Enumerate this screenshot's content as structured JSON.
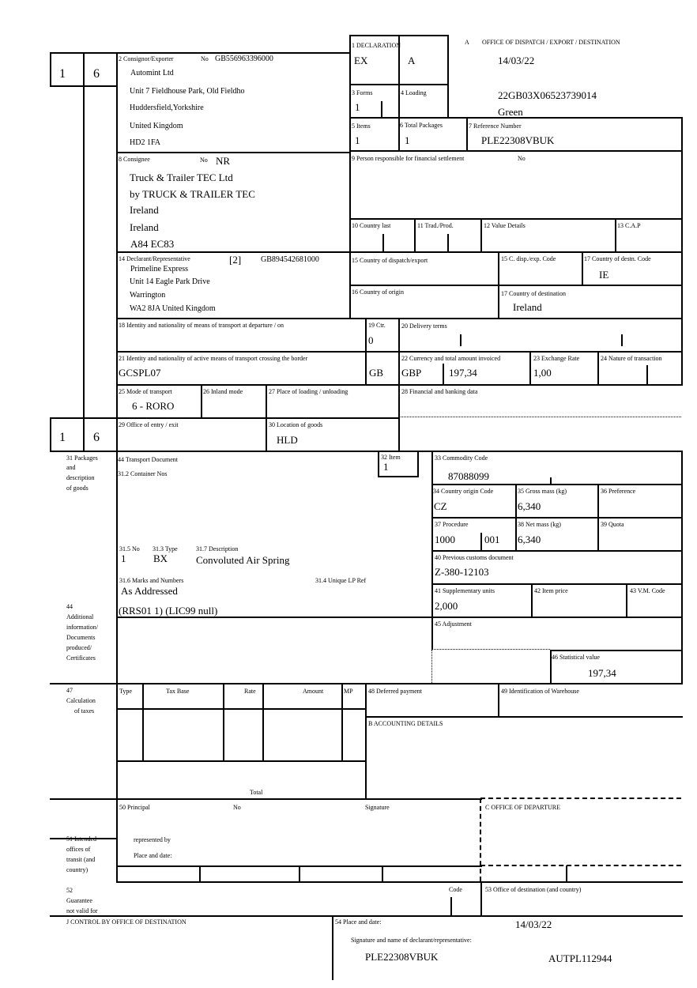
{
  "header": {
    "a_label": "A",
    "office_label": "OFFICE OF DISPATCH / EXPORT / DESTINATION",
    "date": "14/03/22",
    "mrn": "22GB03X06523739014",
    "route": "Green"
  },
  "side": {
    "form_top": "1",
    "form_top_of": "6",
    "form_bottom": "1",
    "form_bottom_of": "6"
  },
  "box1": {
    "label": "1 DECLARATION",
    "type": "EX",
    "subtype": "A"
  },
  "box2": {
    "label": "2 Consignor/Exporter",
    "no_label": "No",
    "no": "GB556963396000",
    "lines": [
      "Automint Ltd",
      "Unit 7 Fieldhouse Park, Old Fieldho",
      "Huddersfield,Yorkshire",
      "United Kingdom",
      "HD2 1FA"
    ]
  },
  "box3": {
    "label": "3 Forms",
    "value": "1"
  },
  "box4": {
    "label": "4 Loading"
  },
  "box5": {
    "label": "5 Items",
    "value": "1"
  },
  "box6": {
    "label": "6 Total Packages",
    "value": "1"
  },
  "box7": {
    "label": "7 Reference Number",
    "value": "PLE22308VBUK"
  },
  "box8": {
    "label": "8 Consignee",
    "no_label": "No",
    "no": "NR",
    "lines": [
      "Truck & Trailer TEC Ltd",
      "by TRUCK & TRAILER TEC",
      "Ireland",
      "Ireland",
      "A84 EC83"
    ]
  },
  "box9": {
    "label": "9 Person responsible for financial settlement",
    "no_label": "No"
  },
  "box10": {
    "label": "10 Country last"
  },
  "box11": {
    "label": "11 Trad./Prod."
  },
  "box12": {
    "label": "12 Value Details"
  },
  "box13": {
    "label": "13 C.A.P"
  },
  "box14": {
    "label": "14 Declarant/Representative",
    "rep_code": "[2]",
    "no": "GB894542681000",
    "lines": [
      "Primeline Express",
      "Unit 14 Eagle Park Drive",
      "Warrington",
      "WA2 8JA United Kingdom"
    ]
  },
  "box15": {
    "label": "15 Country of dispatch/export"
  },
  "box15a": {
    "label": "15 C. disp./exp. Code"
  },
  "box17a": {
    "label": "17 Country of destn. Code",
    "value": "IE"
  },
  "box16": {
    "label": "16 Country of origin"
  },
  "box17": {
    "label": "17 Country of destination",
    "value": "Ireland"
  },
  "box18": {
    "label": "18 Identity and nationality of means of transport at departure / on"
  },
  "box19": {
    "label": "19 Ctr.",
    "value": "0"
  },
  "box20": {
    "label": "20 Delivery terms"
  },
  "box21": {
    "label": "21 Identity and nationality of active means of transport crossing the border",
    "value": "GCSPL07",
    "nationality": "GB"
  },
  "box22": {
    "label": "22 Currency and total amount invoiced",
    "currency": "GBP",
    "amount": "197,34"
  },
  "box23": {
    "label": "23 Exchange Rate",
    "value": "1,00"
  },
  "box24": {
    "label": "24 Nature of transaction"
  },
  "box25": {
    "label": "25 Mode of transport",
    "value": "6 - RORO"
  },
  "box26": {
    "label": "26 Inland mode"
  },
  "box27": {
    "label": "27 Place of loading / unloading"
  },
  "box28": {
    "label": "28 Financial and banking data"
  },
  "box29": {
    "label": "29 Office of entry / exit"
  },
  "box30": {
    "label": "30 Location of goods",
    "value": "HLD"
  },
  "box31": {
    "label_lines": [
      "31 Packages",
      "and",
      "description",
      "of goods"
    ],
    "transport_doc_label": "44 Transport Document",
    "container_label": "31.2 Container Nos",
    "no_label": "31.5 No",
    "type_label": "31.3 Type",
    "desc_label": "31.7 Description",
    "no": "1",
    "type": "BX",
    "description": "Convoluted Air Spring",
    "marks_label": "31.6 Marks and Numbers",
    "marks": "As Addressed",
    "ulp_label": "31.4 Unique LP Ref"
  },
  "box32": {
    "label": "32 Item",
    "value": "1"
  },
  "box33": {
    "label": "33 Commodity Code",
    "value": "87088099"
  },
  "box34": {
    "label": "34 Country origin Code",
    "value": "CZ"
  },
  "box35": {
    "label": "35 Gross mass (kg)",
    "value": "6,340"
  },
  "box36": {
    "label": "36 Preference"
  },
  "box37": {
    "label": "37 Procedure",
    "value": "1000",
    "value2": "001"
  },
  "box38": {
    "label": "38 Net mass (kg)",
    "value": "6,340"
  },
  "box39": {
    "label": "39 Quota"
  },
  "box40": {
    "label": "40 Previous customs document",
    "value": "Z-380-12103"
  },
  "box41": {
    "label": "41 Supplementary units",
    "value": "2,000"
  },
  "box42": {
    "label": "42 Item price"
  },
  "box43": {
    "label": "43 V.M. Code"
  },
  "box44": {
    "label_lines": [
      "44",
      "Additional",
      "information/",
      "Documents",
      "produced/",
      "Certificates"
    ],
    "value": "(RRS01 1) (LIC99 null)"
  },
  "box45": {
    "label": "45 Adjustment"
  },
  "box46": {
    "label": "46 Statistical value",
    "value": "197,34"
  },
  "box47": {
    "label_lines": [
      "47",
      "Calculation",
      "of taxes"
    ],
    "columns": [
      "Type",
      "Tax Base",
      "Rate",
      "Amount",
      "MP"
    ],
    "total_label": "Total"
  },
  "box48": {
    "label": "48 Deferred payment"
  },
  "box49": {
    "label": "49 Identification of Warehouse"
  },
  "boxB": {
    "label": "B ACCOUNTING DETAILS"
  },
  "box50": {
    "label": "50 Principal",
    "no_label": "No",
    "signature_label": "Signature",
    "represented_label": "represented by",
    "place_label": "Place and date:"
  },
  "boxC": {
    "label": "C OFFICE OF DEPARTURE"
  },
  "box51": {
    "label_lines": [
      "51 Intended",
      "offices of",
      "transit (and",
      "country)"
    ]
  },
  "box52": {
    "label_lines": [
      "52",
      "Guarantee",
      "not valid for"
    ],
    "code_label": "Code"
  },
  "box53": {
    "label": "53 Office of destination (and country)"
  },
  "boxJ": {
    "label": "J CONTROL BY OFFICE OF DESTINATION"
  },
  "box54": {
    "label": "54 Place and date:",
    "date": "14/03/22",
    "sig_label": "Signature and name of declarant/representative:",
    "name": "PLE22308VBUK",
    "auth": "AUTPL112944"
  }
}
